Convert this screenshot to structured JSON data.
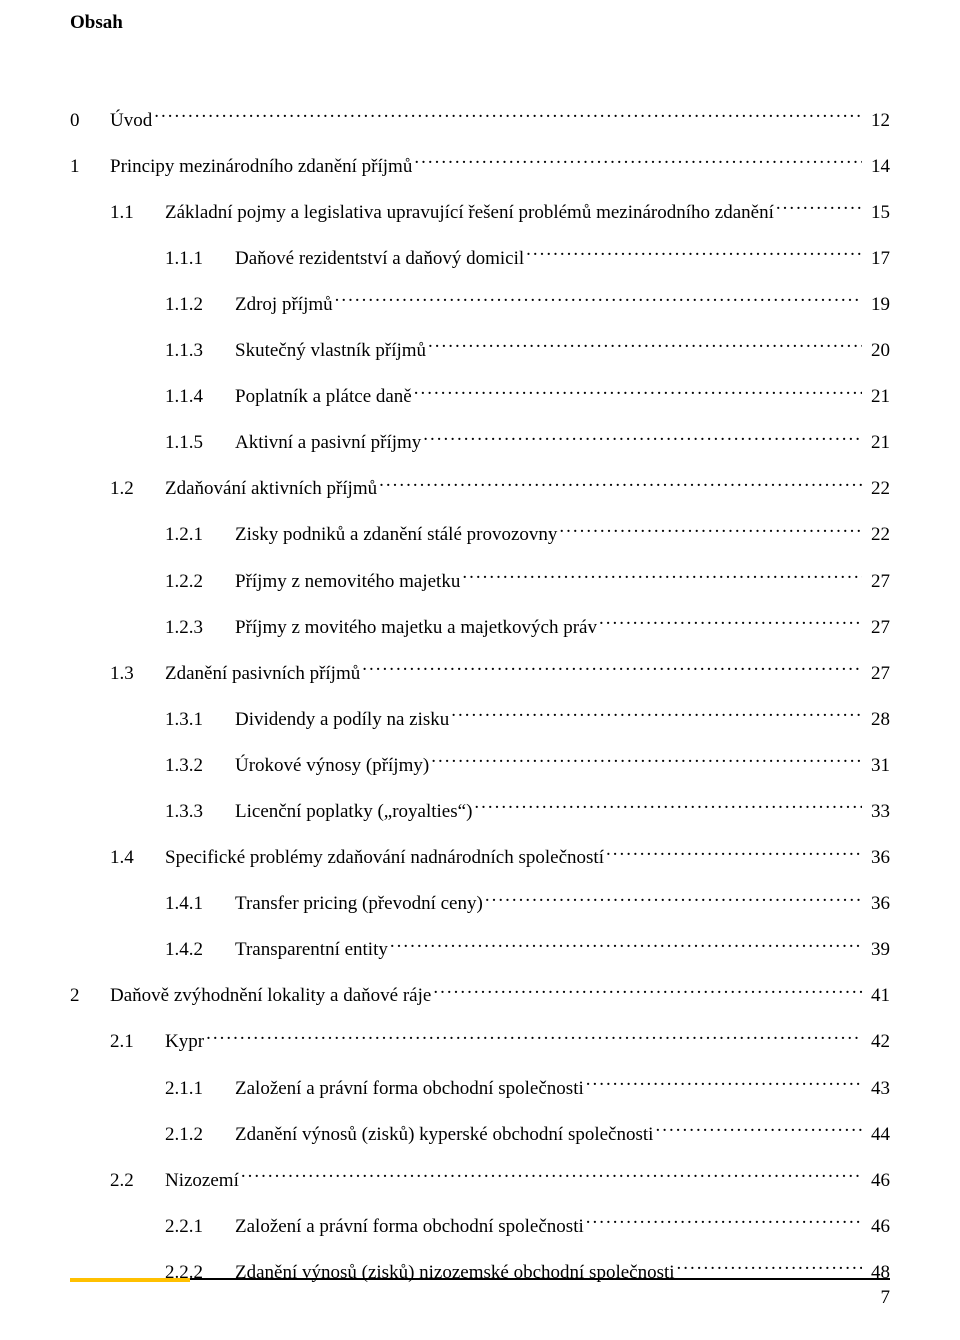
{
  "heading": "Obsah",
  "footer_page": "7",
  "colors": {
    "accent": "#ffc000",
    "text": "#000000",
    "bg": "#ffffff"
  },
  "entries": [
    {
      "level": 0,
      "num": "0",
      "title": "Úvod",
      "page": "12"
    },
    {
      "level": 0,
      "num": "1",
      "title": "Principy mezinárodního zdanění příjmů",
      "page": "14"
    },
    {
      "level": 1,
      "num": "1.1",
      "title": "Základní pojmy a legislativa upravující řešení problémů mezinárodního zdanění",
      "page": "15"
    },
    {
      "level": 2,
      "num": "1.1.1",
      "title": "Daňové rezidentství a daňový domicil",
      "page": "17"
    },
    {
      "level": 2,
      "num": "1.1.2",
      "title": "Zdroj příjmů",
      "page": "19"
    },
    {
      "level": 2,
      "num": "1.1.3",
      "title": "Skutečný vlastník příjmů",
      "page": "20"
    },
    {
      "level": 2,
      "num": "1.1.4",
      "title": "Poplatník a plátce daně",
      "page": "21"
    },
    {
      "level": 2,
      "num": "1.1.5",
      "title": "Aktivní a pasivní příjmy",
      "page": "21"
    },
    {
      "level": 1,
      "num": "1.2",
      "title": "Zdaňování aktivních příjmů",
      "page": "22"
    },
    {
      "level": 2,
      "num": "1.2.1",
      "title": "Zisky podniků a zdanění stálé provozovny",
      "page": "22"
    },
    {
      "level": 2,
      "num": "1.2.2",
      "title": "Příjmy z nemovitého majetku",
      "page": "27"
    },
    {
      "level": 2,
      "num": "1.2.3",
      "title": "Příjmy z movitého majetku a majetkových práv",
      "page": "27"
    },
    {
      "level": 1,
      "num": "1.3",
      "title": "Zdanění pasivních příjmů",
      "page": "27"
    },
    {
      "level": 2,
      "num": "1.3.1",
      "title": "Dividendy a podíly na zisku",
      "page": "28"
    },
    {
      "level": 2,
      "num": "1.3.2",
      "title": "Úrokové výnosy (příjmy)",
      "page": "31"
    },
    {
      "level": 2,
      "num": "1.3.3",
      "title": "Licenční poplatky („royalties“)",
      "page": "33"
    },
    {
      "level": 1,
      "num": "1.4",
      "title": "Specifické problémy zdaňování nadnárodních společností",
      "page": "36"
    },
    {
      "level": 2,
      "num": "1.4.1",
      "title": "Transfer pricing (převodní ceny)",
      "page": "36"
    },
    {
      "level": 2,
      "num": "1.4.2",
      "title": "Transparentní entity",
      "page": "39"
    },
    {
      "level": 0,
      "num": "2",
      "title": "Daňově zvýhodnění lokality a daňové ráje",
      "page": "41"
    },
    {
      "level": 1,
      "num": "2.1",
      "title": "Kypr",
      "page": "42"
    },
    {
      "level": 2,
      "num": "2.1.1",
      "title": "Založení a právní forma obchodní společnosti",
      "page": "43"
    },
    {
      "level": 2,
      "num": "2.1.2",
      "title": "Zdanění výnosů (zisků) kyperské obchodní společnosti",
      "page": "44"
    },
    {
      "level": 1,
      "num": "2.2",
      "title": "Nizozemí",
      "page": "46"
    },
    {
      "level": 2,
      "num": "2.2.1",
      "title": "Založení a právní forma obchodní společnosti",
      "page": "46"
    },
    {
      "level": 2,
      "num": "2.2.2",
      "title": "Zdanění výnosů (zisků) nizozemské obchodní společnosti",
      "page": "48"
    }
  ]
}
